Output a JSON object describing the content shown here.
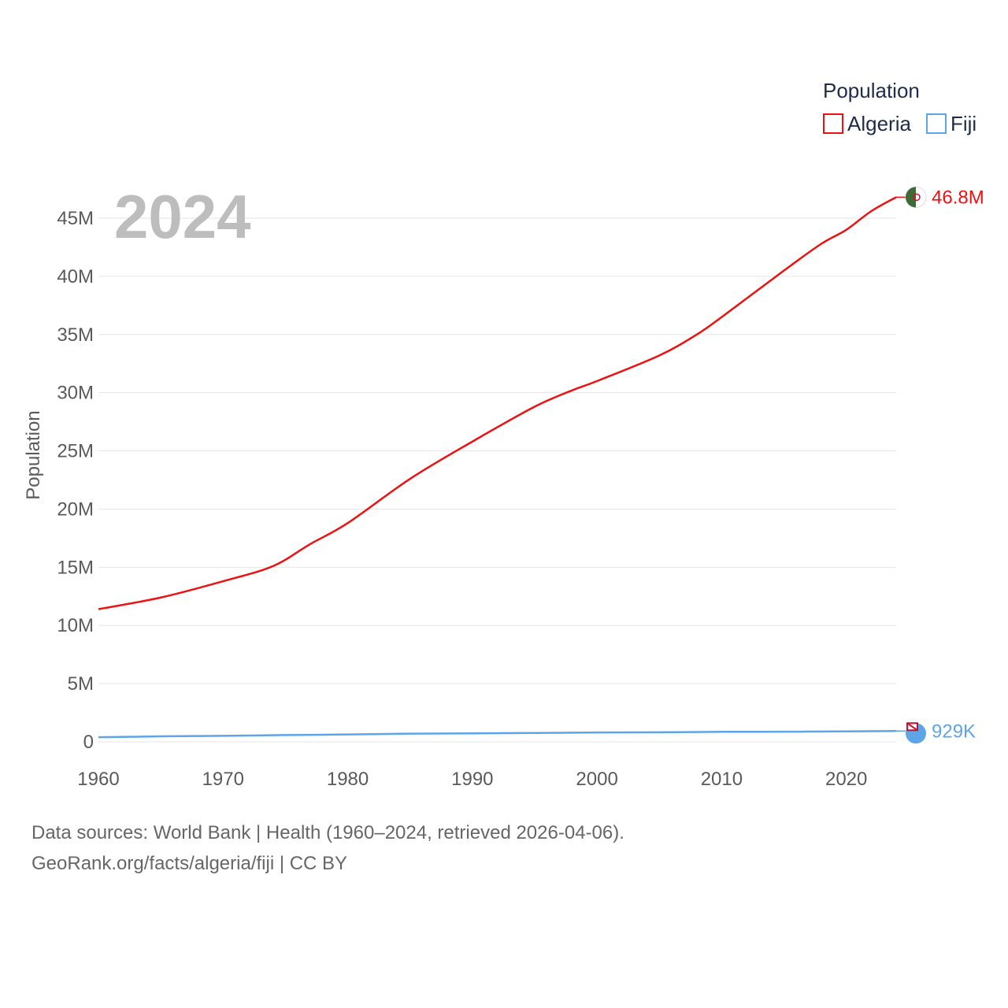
{
  "chart_data": {
    "type": "line",
    "year_label": "2024",
    "ylabel": "Population",
    "xlim": [
      1960,
      2024
    ],
    "ylim": [
      0,
      45000000
    ],
    "x_ticks": [
      "1960",
      "1970",
      "1980",
      "1990",
      "2000",
      "2010",
      "2020"
    ],
    "y_ticks": [
      "0",
      "5M",
      "10M",
      "15M",
      "20M",
      "25M",
      "30M",
      "35M",
      "40M",
      "45M"
    ],
    "legend": {
      "title": "Population",
      "items": [
        "Algeria",
        "Fiji"
      ]
    },
    "series": [
      {
        "name": "Algeria",
        "color": "#ee1111",
        "end_label": "46.8M",
        "x": [
          1960,
          1965,
          1970,
          1974,
          1977,
          1980,
          1985,
          1990,
          1995,
          1998,
          2000,
          2005,
          2008,
          2010,
          2015,
          2018,
          2020,
          2022,
          2024
        ],
        "values": [
          11400000,
          12400000,
          13800000,
          15100000,
          17000000,
          18800000,
          22600000,
          25800000,
          28800000,
          30200000,
          31000000,
          33200000,
          35000000,
          36500000,
          40500000,
          42800000,
          44000000,
          45600000,
          46800000
        ]
      },
      {
        "name": "Fiji",
        "color": "#5ea5e8",
        "end_label": "929K",
        "x": [
          1960,
          1965,
          1970,
          1975,
          1980,
          1985,
          1990,
          1995,
          2000,
          2005,
          2010,
          2015,
          2020,
          2024
        ],
        "values": [
          394000,
          470000,
          520000,
          580000,
          635000,
          700000,
          730000,
          760000,
          800000,
          820000,
          860000,
          868000,
          900000,
          929000
        ]
      }
    ]
  },
  "footer": {
    "line1": "Data sources: World Bank | Health (1960–2024, retrieved 2026-04-06).",
    "line2": "GeoRank.org/facts/algeria/fiji | CC BY"
  },
  "colors": {
    "grid": "#e6e6e6",
    "tick_text": "#5a5a5a",
    "year_watermark": "#bdbdbd",
    "algeria_flag_green": "#3e6b35",
    "fiji_flag_blue": "#5ea5e8"
  }
}
